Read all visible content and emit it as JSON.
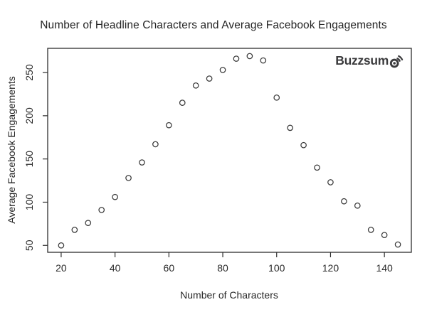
{
  "chart_data": {
    "type": "scatter",
    "title": "Number of Headline Characters and Average Facebook Engagements",
    "xlabel": "Number of Characters",
    "ylabel": "Average Facebook Engagements",
    "x": [
      20,
      25,
      30,
      35,
      40,
      45,
      50,
      55,
      60,
      65,
      70,
      75,
      80,
      85,
      90,
      95,
      100,
      105,
      110,
      115,
      120,
      125,
      130,
      135,
      140,
      145
    ],
    "y": [
      50,
      68,
      76,
      91,
      106,
      128,
      146,
      167,
      189,
      215,
      235,
      243,
      253,
      266,
      269,
      264,
      221,
      186,
      166,
      140,
      123,
      101,
      96,
      68,
      62,
      51
    ],
    "x_ticks": [
      20,
      40,
      60,
      80,
      100,
      120,
      140
    ],
    "y_ticks": [
      50,
      100,
      150,
      200,
      250
    ],
    "xlim": [
      15,
      150
    ],
    "ylim": [
      42,
      278
    ],
    "grid": false,
    "legend": "none",
    "point_style": "open-circle",
    "colors": {
      "background": "#ffffff",
      "axis": "#2e2e2e",
      "text": "#262626",
      "point_stroke": "#3a3a3a"
    }
  },
  "logo": {
    "text": "Buzzsum",
    "full_name": "Buzzsumo",
    "icon": "signal-o-icon",
    "color": "#3b3b3d"
  }
}
